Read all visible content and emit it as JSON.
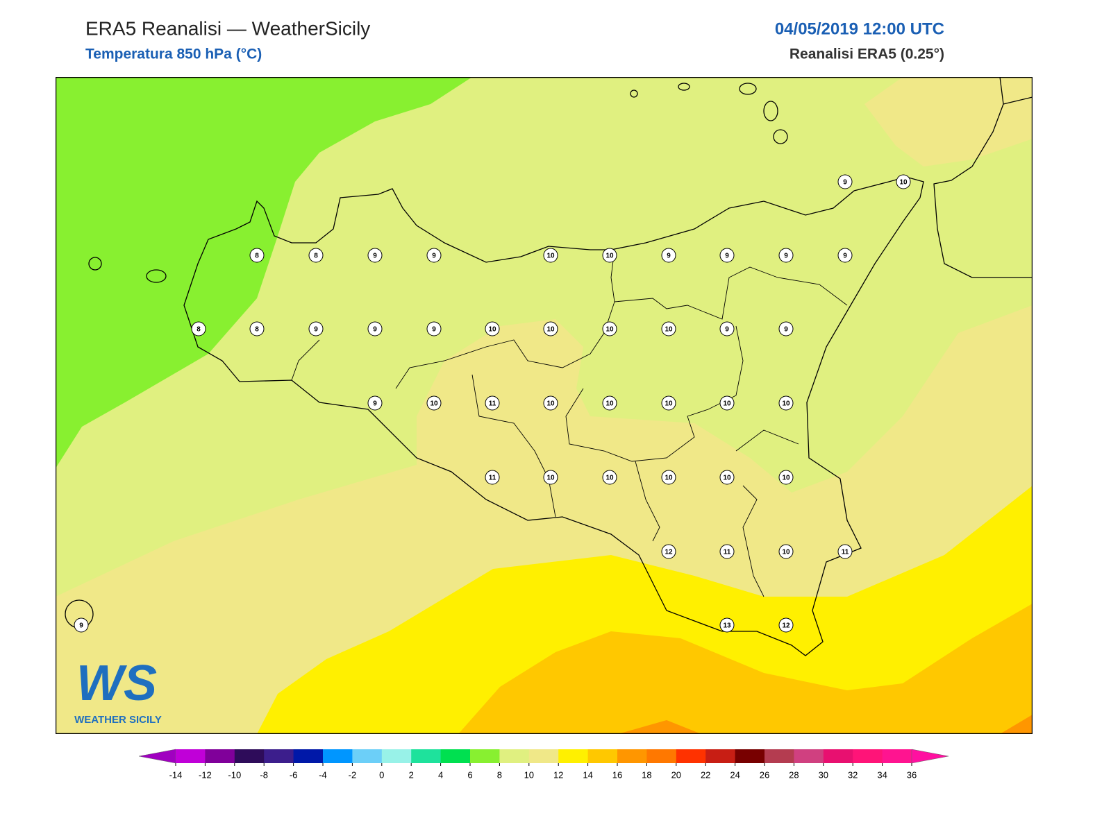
{
  "header": {
    "title": "ERA5 Reanalisi — WeatherSicily",
    "subtitle": "Temperatura 850 hPa (°C)",
    "date": "04/05/2019 12:00 UTC",
    "source": "Reanalisi ERA5 (0.25°)"
  },
  "logo": {
    "mark": "WS",
    "name": "WEATHER SICILY"
  },
  "stations": [
    9,
    10,
    8,
    8,
    9,
    9,
    10,
    10,
    9,
    9,
    9,
    9,
    8,
    8,
    9,
    9,
    9,
    10,
    10,
    10,
    10,
    9,
    9,
    9,
    10,
    11,
    10,
    10,
    10,
    10,
    10,
    11,
    10,
    10,
    10,
    10,
    10,
    12,
    11,
    10,
    11,
    9,
    13,
    12
  ],
  "colorbar": {
    "ticks": [
      -14,
      -12,
      -10,
      -8,
      -6,
      -4,
      -2,
      0,
      2,
      4,
      6,
      8,
      10,
      12,
      14,
      16,
      18,
      20,
      22,
      24,
      26,
      28,
      30,
      32,
      34,
      36
    ],
    "colors": [
      "#a000c0",
      "#c000d8",
      "#80009a",
      "#2e0c5a",
      "#3c1e8c",
      "#0018a8",
      "#0096ff",
      "#6ccff8",
      "#98f2e8",
      "#1ee29c",
      "#00e050",
      "#88f030",
      "#e0f080",
      "#f0e888",
      "#fff000",
      "#ffc800",
      "#ff9600",
      "#ff7800",
      "#ff3200",
      "#c81e14",
      "#780000",
      "#b43c50",
      "#d04080",
      "#e81070",
      "#ff1478",
      "#ff1490",
      "#ff10a0"
    ]
  }
}
